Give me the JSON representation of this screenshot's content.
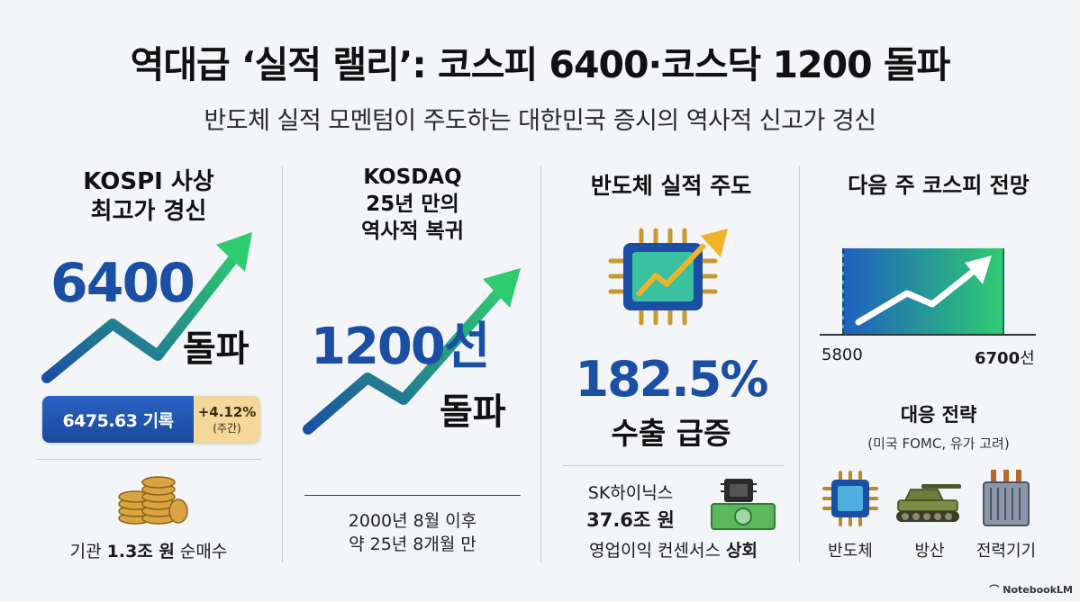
{
  "header": {
    "title": "역대급 ‘실적 랠리’: 코스피 6400·코스닥 1200 돌파",
    "subtitle": "반도체 실적 모멘텀이 주도하는 대한민국 증시의 역사적 신고가 경신"
  },
  "kospi": {
    "heading_line1": "KOSPI 사상",
    "heading_line2": "최고가 경신",
    "big_number": "6400",
    "big_suffix": "돌파",
    "record_value": "6475.63 기록",
    "weekly_change": "+4.12%",
    "weekly_label": "(주간)",
    "institution_prefix": "기관 ",
    "institution_amount": "1.3조 원",
    "institution_suffix": " 순매수"
  },
  "kosdaq": {
    "heading_line1": "KOSDAQ",
    "heading_line2": "25년 만의",
    "heading_line3": "역사적 복귀",
    "big_number": "1200선",
    "big_suffix": "돌파",
    "note_line1": "2000년 8월 이후",
    "note_line2": "약 25년 8개월 만"
  },
  "semis": {
    "heading": "반도체 실적 주도",
    "big_number": "182.5%",
    "big_suffix": "수출 급증",
    "company": "SK하이닉스",
    "profit": "37.6조 원",
    "consensus_prefix": "영업이익 컨센서스 ",
    "consensus_emphasis": "상회"
  },
  "outlook": {
    "heading": "다음 주 코스피 전망",
    "range_low": "5800",
    "range_high_num": "6700",
    "range_high_suffix": "선",
    "strategy_title": "대응 전략",
    "strategy_note": "(미국 FOMC, 유가 고려)",
    "sectors": [
      "반도체",
      "방산",
      "전력기기"
    ]
  },
  "brand": "NotebookLM",
  "colors": {
    "accent_blue": "#1b4fa3",
    "arrow_green": "#2ecc71",
    "badge_gold": "#f4d79a"
  }
}
